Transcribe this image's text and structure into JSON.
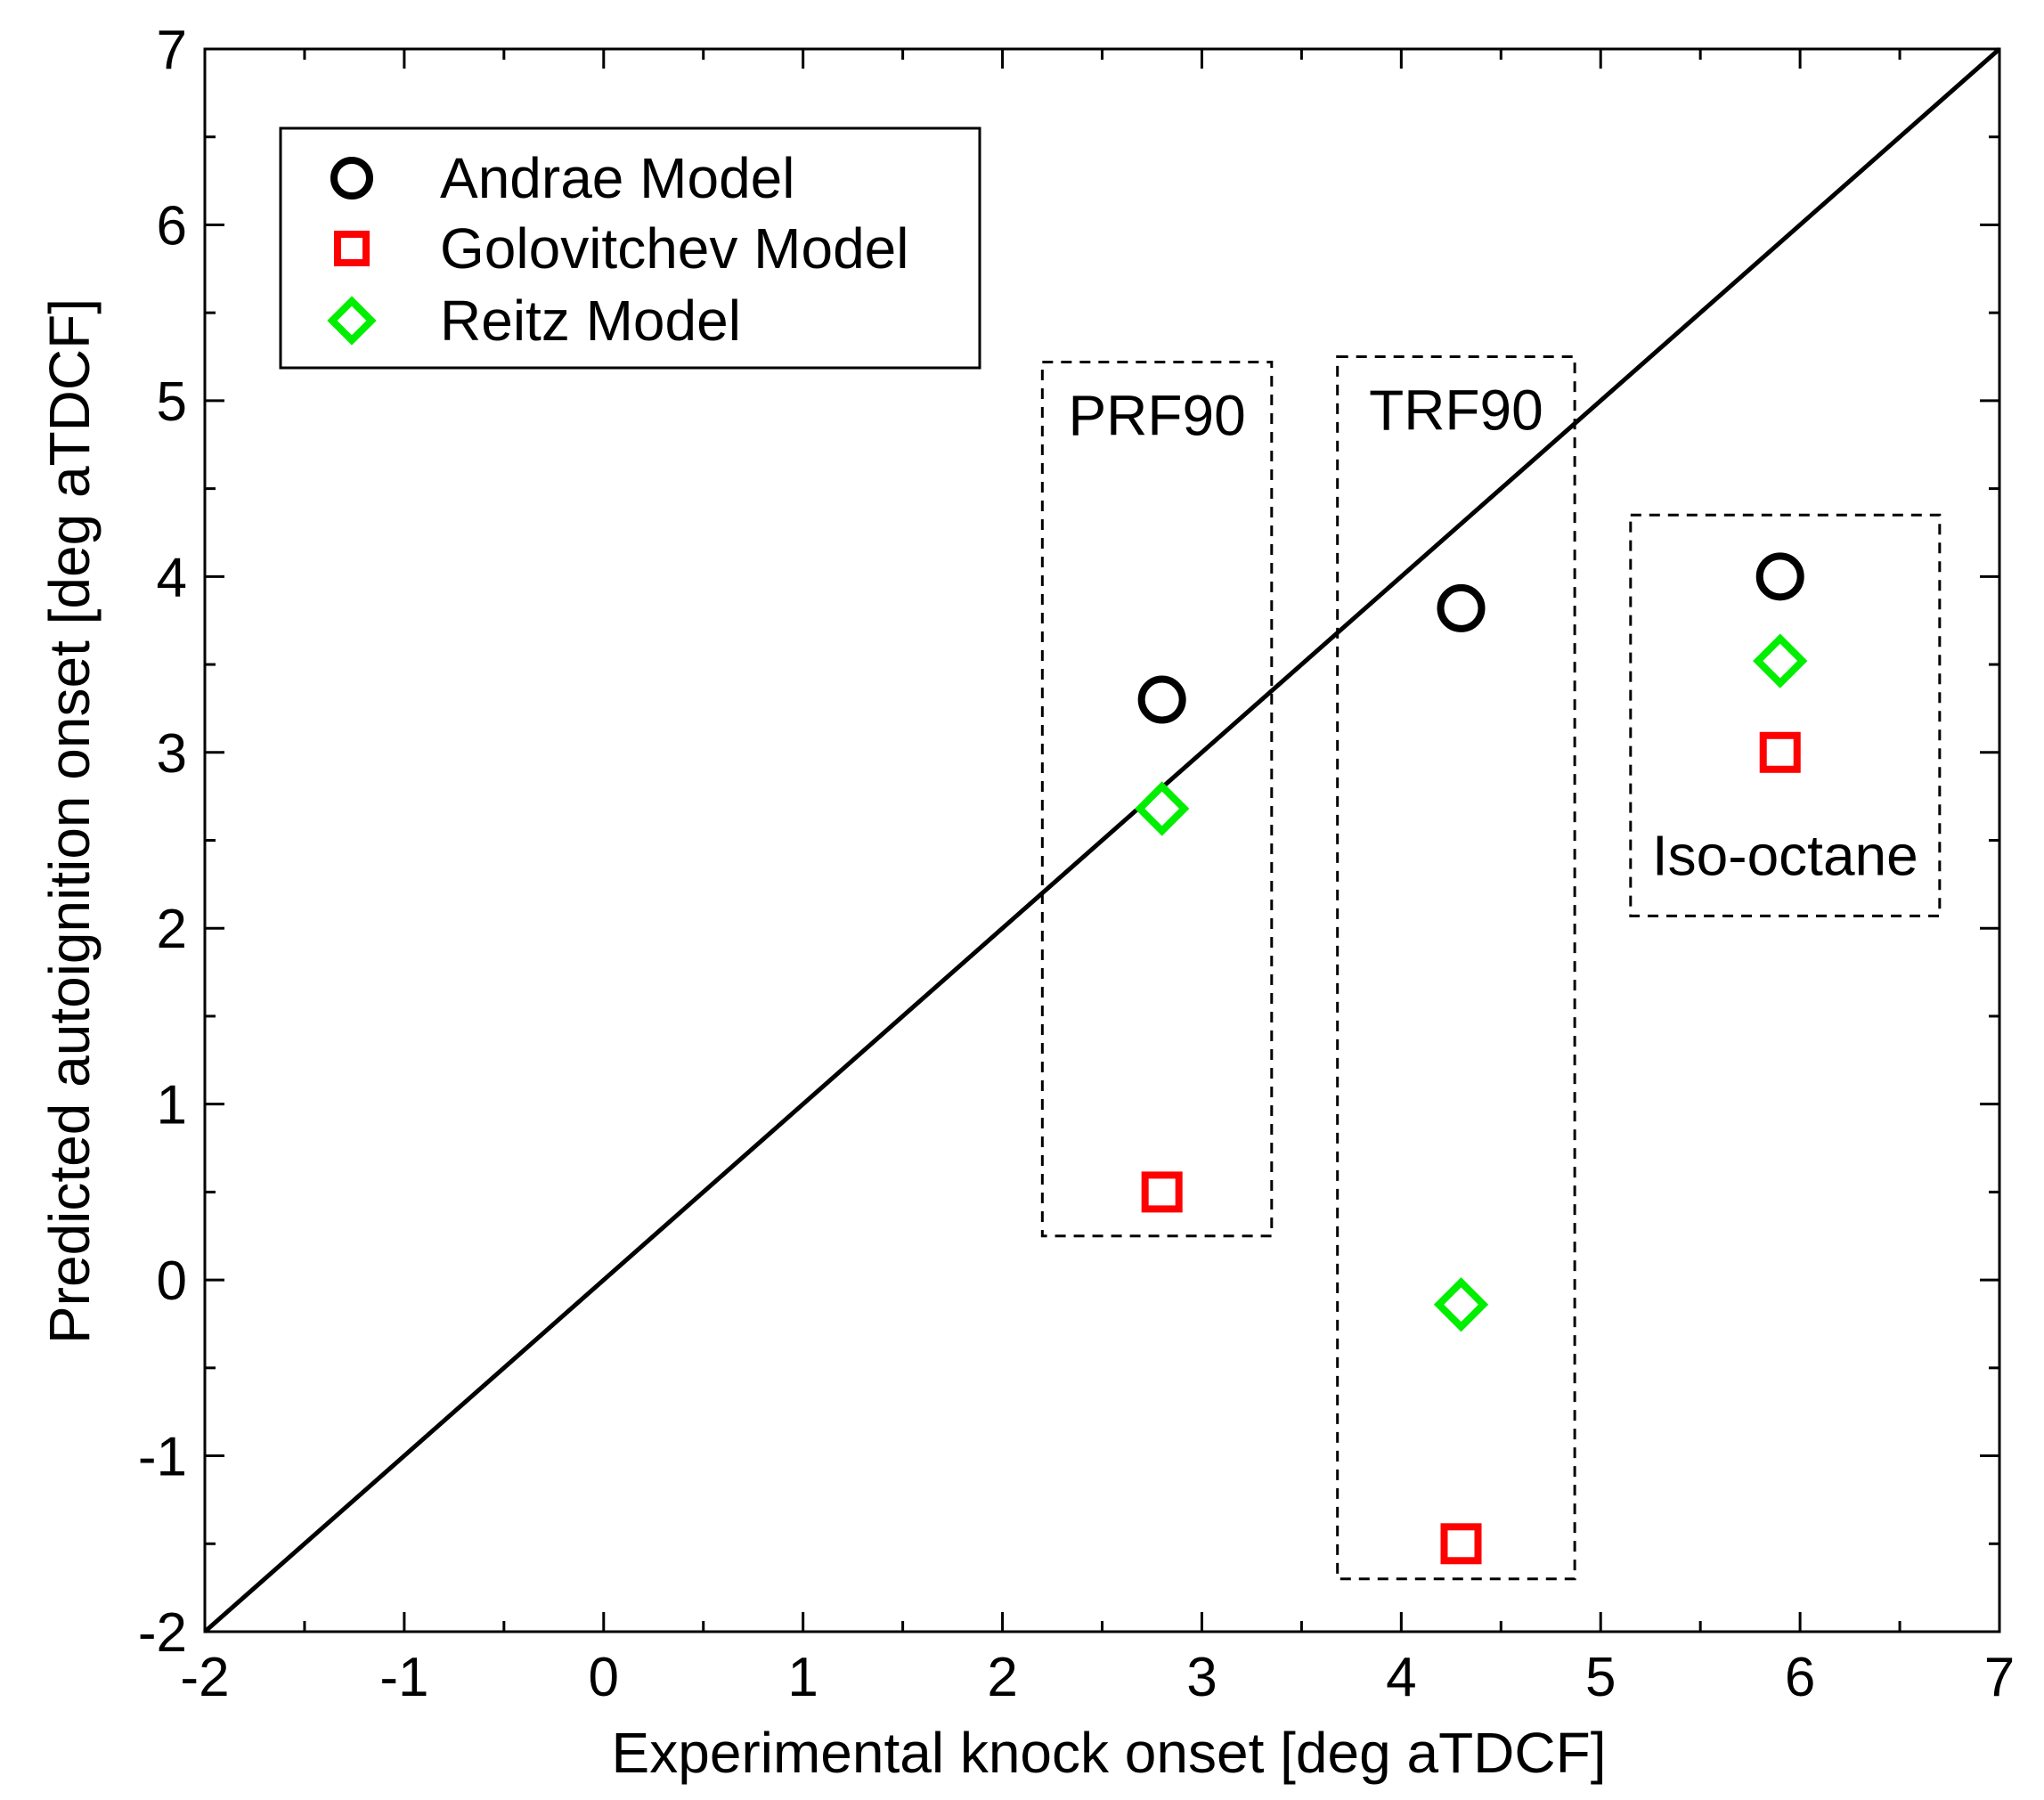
{
  "chart_data": {
    "type": "scatter",
    "title": "",
    "xlabel": "Experimental knock onset [deg aTDCF]",
    "ylabel": "Predicted autoignition onset [deg aTDCF]",
    "xlim": [
      -2,
      7
    ],
    "ylim": [
      -2,
      7
    ],
    "xticks": [
      "-2",
      "-1",
      "0",
      "1",
      "2",
      "3",
      "4",
      "5",
      "6",
      "7"
    ],
    "yticks": [
      "-2",
      "-1",
      "0",
      "1",
      "2",
      "3",
      "4",
      "5",
      "6",
      "7"
    ],
    "minor_tick_step": 0.5,
    "grid": false,
    "legend_position": "top-left",
    "reference_line": {
      "name": "parity line y = x",
      "from": [
        -2,
        -2
      ],
      "to": [
        7,
        7
      ],
      "color": "#000000"
    },
    "series": [
      {
        "name": "Andrae Model",
        "marker": "circle",
        "color": "#000000",
        "points": [
          {
            "x": 2.8,
            "y": 3.3
          },
          {
            "x": 4.3,
            "y": 3.82
          },
          {
            "x": 5.9,
            "y": 4.0
          }
        ]
      },
      {
        "name": "Golovitchev Model",
        "marker": "square",
        "color": "#ff0000",
        "points": [
          {
            "x": 2.8,
            "y": 0.5
          },
          {
            "x": 4.3,
            "y": -1.5
          },
          {
            "x": 5.9,
            "y": 3.0
          }
        ]
      },
      {
        "name": "Reitz Model",
        "marker": "diamond",
        "color": "#00ee00",
        "points": [
          {
            "x": 2.8,
            "y": 2.68
          },
          {
            "x": 4.3,
            "y": -0.14
          },
          {
            "x": 5.9,
            "y": 3.52
          }
        ]
      }
    ],
    "groups": [
      {
        "label": "PRF90",
        "label_position": "top",
        "x_range": [
          2.2,
          3.35
        ],
        "y_range": [
          0.25,
          5.22
        ]
      },
      {
        "label": "TRF90",
        "label_position": "top",
        "x_range": [
          3.68,
          4.87
        ],
        "y_range": [
          -1.7,
          5.25
        ]
      },
      {
        "label": "Iso-octane",
        "label_position": "bottom",
        "x_range": [
          5.15,
          6.7
        ],
        "y_range": [
          2.07,
          4.35
        ]
      }
    ]
  }
}
